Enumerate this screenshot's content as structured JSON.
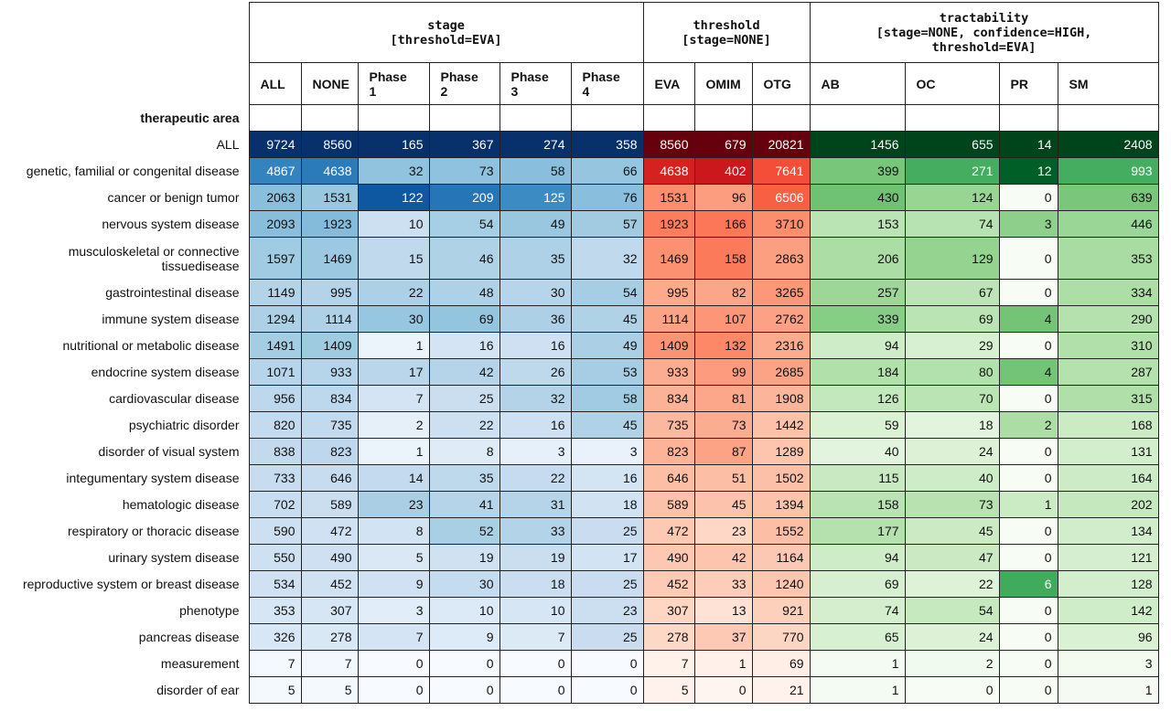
{
  "chart_data": {
    "type": "heatmap",
    "index_name": "therapeutic area",
    "groups": [
      {
        "key": "stage",
        "lines": [
          "stage",
          "[threshold=EVA]"
        ],
        "span": 6,
        "cmap": "blues"
      },
      {
        "key": "threshold",
        "lines": [
          "threshold",
          "[stage=NONE]"
        ],
        "span": 3,
        "cmap": "reds"
      },
      {
        "key": "tractability",
        "lines": [
          "tractability",
          "[stage=NONE, confidence=HIGH,",
          "threshold=EVA]"
        ],
        "span": 4,
        "cmap": "greens"
      }
    ],
    "columns": [
      {
        "label": "ALL",
        "group": "stage"
      },
      {
        "label": "NONE",
        "group": "stage"
      },
      {
        "label": "Phase\n1",
        "group": "stage"
      },
      {
        "label": "Phase\n2",
        "group": "stage"
      },
      {
        "label": "Phase\n3",
        "group": "stage"
      },
      {
        "label": "Phase\n4",
        "group": "stage"
      },
      {
        "label": "EVA",
        "group": "threshold"
      },
      {
        "label": "OMIM",
        "group": "threshold"
      },
      {
        "label": "OTG",
        "group": "threshold"
      },
      {
        "label": "AB",
        "group": "tractability"
      },
      {
        "label": "OC",
        "group": "tractability"
      },
      {
        "label": "PR",
        "group": "tractability"
      },
      {
        "label": "SM",
        "group": "tractability"
      }
    ],
    "rows": [
      {
        "label": "ALL",
        "values": [
          9724,
          8560,
          165,
          367,
          274,
          358,
          8560,
          679,
          20821,
          1456,
          655,
          14,
          2408
        ]
      },
      {
        "label": "genetic, familial or congenital disease",
        "values": [
          4867,
          4638,
          32,
          73,
          58,
          66,
          4638,
          402,
          7641,
          399,
          271,
          12,
          993
        ]
      },
      {
        "label": "cancer or benign tumor",
        "values": [
          2063,
          1531,
          122,
          209,
          125,
          76,
          1531,
          96,
          6506,
          430,
          124,
          0,
          639
        ]
      },
      {
        "label": "nervous system disease",
        "values": [
          2093,
          1923,
          10,
          54,
          49,
          57,
          1923,
          166,
          3710,
          153,
          74,
          3,
          446
        ]
      },
      {
        "label": "musculoskeletal or connective tissue\ndisease",
        "values": [
          1597,
          1469,
          15,
          46,
          35,
          32,
          1469,
          158,
          2863,
          206,
          129,
          0,
          353
        ]
      },
      {
        "label": "gastrointestinal disease",
        "values": [
          1149,
          995,
          22,
          48,
          30,
          54,
          995,
          82,
          3265,
          257,
          67,
          0,
          334
        ]
      },
      {
        "label": "immune system disease",
        "values": [
          1294,
          1114,
          30,
          69,
          36,
          45,
          1114,
          107,
          2762,
          339,
          69,
          4,
          290
        ]
      },
      {
        "label": "nutritional or metabolic disease",
        "values": [
          1491,
          1409,
          1,
          16,
          16,
          49,
          1409,
          132,
          2316,
          94,
          29,
          0,
          310
        ]
      },
      {
        "label": "endocrine system disease",
        "values": [
          1071,
          933,
          17,
          42,
          26,
          53,
          933,
          99,
          2685,
          184,
          80,
          4,
          287
        ]
      },
      {
        "label": "cardiovascular disease",
        "values": [
          956,
          834,
          7,
          25,
          32,
          58,
          834,
          81,
          1908,
          126,
          70,
          0,
          315
        ]
      },
      {
        "label": "psychiatric disorder",
        "values": [
          820,
          735,
          2,
          22,
          16,
          45,
          735,
          73,
          1442,
          59,
          18,
          2,
          168
        ]
      },
      {
        "label": "disorder of visual system",
        "values": [
          838,
          823,
          1,
          8,
          3,
          3,
          823,
          87,
          1289,
          40,
          24,
          0,
          131
        ]
      },
      {
        "label": "integumentary system disease",
        "values": [
          733,
          646,
          14,
          35,
          22,
          16,
          646,
          51,
          1502,
          115,
          40,
          0,
          164
        ]
      },
      {
        "label": "hematologic disease",
        "values": [
          702,
          589,
          23,
          41,
          31,
          18,
          589,
          45,
          1394,
          158,
          73,
          1,
          202
        ]
      },
      {
        "label": "respiratory or thoracic disease",
        "values": [
          590,
          472,
          8,
          52,
          33,
          25,
          472,
          23,
          1552,
          177,
          45,
          0,
          134
        ]
      },
      {
        "label": "urinary system disease",
        "values": [
          550,
          490,
          5,
          19,
          19,
          17,
          490,
          42,
          1164,
          94,
          47,
          0,
          121
        ]
      },
      {
        "label": "reproductive system or breast disease",
        "values": [
          534,
          452,
          9,
          30,
          18,
          25,
          452,
          33,
          1240,
          69,
          22,
          6,
          128
        ]
      },
      {
        "label": "phenotype",
        "values": [
          353,
          307,
          3,
          10,
          10,
          23,
          307,
          13,
          921,
          74,
          54,
          0,
          142
        ]
      },
      {
        "label": "pancreas disease",
        "values": [
          326,
          278,
          7,
          9,
          7,
          25,
          278,
          37,
          770,
          65,
          24,
          0,
          96
        ]
      },
      {
        "label": "measurement",
        "values": [
          7,
          7,
          0,
          0,
          0,
          0,
          7,
          1,
          69,
          1,
          2,
          0,
          3
        ]
      },
      {
        "label": "disorder of ear",
        "values": [
          5,
          5,
          0,
          0,
          0,
          0,
          5,
          0,
          21,
          1,
          0,
          0,
          1
        ]
      }
    ],
    "color_scales": {
      "blues": [
        "#f7fbff",
        "#deebf7",
        "#c6dbef",
        "#9ecae1",
        "#6baed6",
        "#4292c6",
        "#2171b5",
        "#08519c",
        "#08306b"
      ],
      "reds": [
        "#fff5f0",
        "#fee0d2",
        "#fcbba1",
        "#fc9272",
        "#fb6a4a",
        "#ef3b2c",
        "#cb181d",
        "#a50f15",
        "#67000d"
      ],
      "greens": [
        "#f7fcf5",
        "#e5f5e0",
        "#c7e9c0",
        "#a1d99b",
        "#74c476",
        "#41ab5d",
        "#238b45",
        "#006d2c",
        "#00441b"
      ]
    },
    "color_gamma": 0.55
  }
}
